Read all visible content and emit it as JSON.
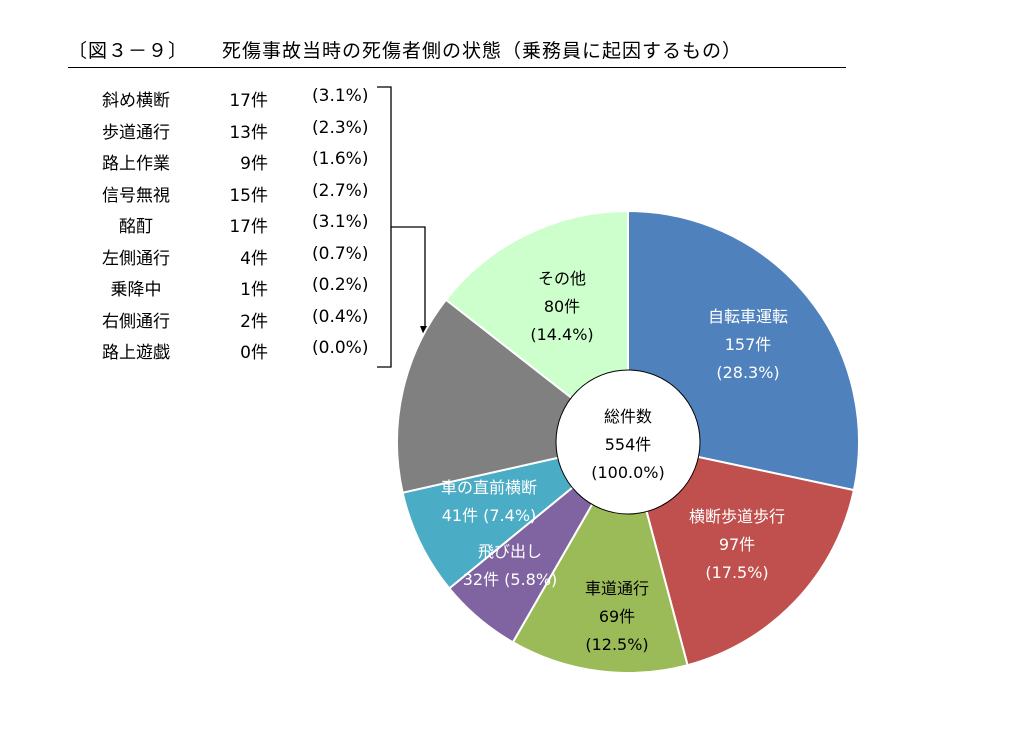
{
  "title": {
    "fig_no": "〔図３－９〕",
    "text": "死傷事故当時の死傷者側の状態（乗務員に起因するもの）"
  },
  "breakdown": [
    {
      "label": "斜め横断",
      "count": "17件",
      "pct": "(3.1%)"
    },
    {
      "label": "歩道通行",
      "count": "13件",
      "pct": "(2.3%)"
    },
    {
      "label": "路上作業",
      "count": "9件",
      "pct": "(1.6%)"
    },
    {
      "label": "信号無視",
      "count": "15件",
      "pct": "(2.7%)"
    },
    {
      "label": "酩酊",
      "count": "17件",
      "pct": "(3.1%)"
    },
    {
      "label": "左側通行",
      "count": "4件",
      "pct": "(0.7%)"
    },
    {
      "label": "乗降中",
      "count": "1件",
      "pct": "(0.2%)"
    },
    {
      "label": "右側通行",
      "count": "2件",
      "pct": "(0.4%)"
    },
    {
      "label": "路上遊戯",
      "count": "0件",
      "pct": "(0.0%)"
    }
  ],
  "chart_data": {
    "type": "pie",
    "variant": "donut",
    "center": {
      "line1": "総件数",
      "line2": "554件",
      "line3": "(100.0%)"
    },
    "total": 554,
    "slices": [
      {
        "label": "自転車運転",
        "value": 157,
        "count": "157件",
        "pct": "(28.3%)",
        "color": "#4F81BD",
        "text_color": "#ffffff",
        "lines": [
          "自転車運転",
          "157件",
          "(28.3%)"
        ]
      },
      {
        "label": "横断歩道歩行",
        "value": 97,
        "count": "97件",
        "pct": "(17.5%)",
        "color": "#C0504D",
        "text_color": "#ffffff",
        "lines": [
          "横断歩道歩行",
          "97件",
          "(17.5%)"
        ]
      },
      {
        "label": "車道通行",
        "value": 69,
        "count": "69件",
        "pct": "(12.5%)",
        "color": "#9BBB59",
        "text_color": "#000000",
        "lines": [
          "車道通行",
          "69件",
          "(12.5%)"
        ]
      },
      {
        "label": "飛び出し",
        "value": 32,
        "count": "32件",
        "pct": "(5.8%)",
        "color": "#8064A2",
        "text_color": "#ffffff",
        "lines": [
          "飛び出し",
          "32件 (5.8%)"
        ]
      },
      {
        "label": "車の直前横断",
        "value": 41,
        "count": "41件",
        "pct": "(7.4%)",
        "color": "#4BACC6",
        "text_color": "#ffffff",
        "lines": [
          "車の直前横断",
          "41件 (7.4%)"
        ]
      },
      {
        "label": "",
        "value": 78,
        "count": "",
        "pct": "",
        "color": "#808080",
        "text_color": "#ffffff",
        "lines": []
      },
      {
        "label": "その他",
        "value": 80,
        "count": "80件",
        "pct": "(14.4%)",
        "color": "#CCFFCC",
        "text_color": "#000000",
        "lines": [
          "その他",
          "80件",
          "(14.4%)"
        ]
      }
    ]
  }
}
